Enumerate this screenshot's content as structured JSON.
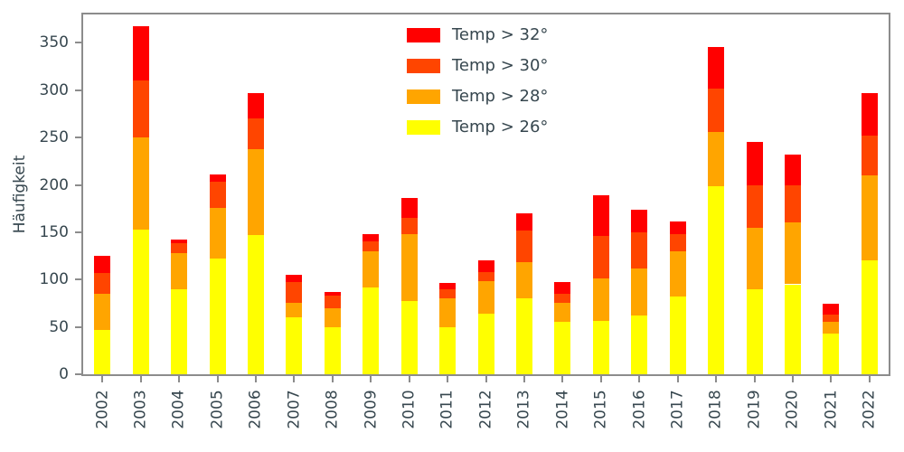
{
  "chart_data": {
    "type": "bar",
    "stacked": true,
    "title": "",
    "xlabel": "",
    "ylabel": "Häufigkeit",
    "categories": [
      "2002",
      "2003",
      "2004",
      "2005",
      "2006",
      "2007",
      "2008",
      "2009",
      "2010",
      "2011",
      "2012",
      "2013",
      "2014",
      "2015",
      "2016",
      "2017",
      "2018",
      "2019",
      "2020",
      "2021",
      "2022"
    ],
    "series": [
      {
        "name": "Temp > 26°",
        "color": "#ffff00",
        "values": [
          47,
          153,
          90,
          122,
          147,
          60,
          50,
          92,
          77,
          50,
          64,
          80,
          55,
          56,
          62,
          82,
          199,
          90,
          95,
          43,
          120
        ]
      },
      {
        "name": "Temp > 28°",
        "color": "#ffa500",
        "values": [
          38,
          97,
          38,
          54,
          91,
          15,
          20,
          38,
          71,
          30,
          34,
          38,
          20,
          45,
          50,
          48,
          57,
          65,
          65,
          12,
          90
        ]
      },
      {
        "name": "Temp > 30°",
        "color": "#ff4500",
        "values": [
          22,
          60,
          10,
          27,
          32,
          22,
          13,
          10,
          17,
          10,
          10,
          34,
          10,
          45,
          38,
          18,
          46,
          45,
          40,
          8,
          42
        ]
      },
      {
        "name": "Temp > 32°",
        "color": "#ff0000",
        "values": [
          18,
          58,
          4,
          8,
          27,
          8,
          4,
          8,
          21,
          6,
          12,
          18,
          12,
          43,
          24,
          13,
          44,
          45,
          32,
          11,
          45
        ]
      }
    ],
    "legend": {
      "position": "upper center inside",
      "order_top_to_bottom": [
        "Temp > 32°",
        "Temp > 30°",
        "Temp > 28°",
        "Temp > 26°"
      ]
    },
    "yticks": [
      0,
      50,
      100,
      150,
      200,
      250,
      300,
      350
    ],
    "ylim": [
      0,
      380
    ],
    "grid": false,
    "style": {
      "axis_color": "#8c8c8c",
      "text_color": "#37474f",
      "background": "#ffffff"
    }
  }
}
